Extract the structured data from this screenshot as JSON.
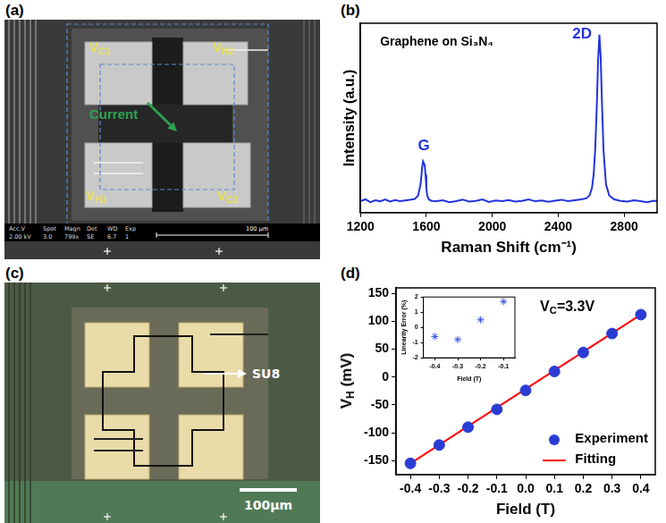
{
  "images": {
    "a": {
      "panel_label": "(a)",
      "terminals": [
        {
          "base": "V",
          "sub": "C1"
        },
        {
          "base": "V",
          "sub": "H2"
        },
        {
          "base": "V",
          "sub": "H1"
        },
        {
          "base": "V",
          "sub": "C2"
        }
      ],
      "arrow_label": "Current",
      "info_header": [
        "Acc.V",
        "Spot",
        "Magn",
        "Det",
        "WD",
        "Exp"
      ],
      "info_values": [
        "2.00 kV",
        "3.0",
        "799x",
        "SE",
        "6.7",
        "1"
      ],
      "scale_bar": "100 μm"
    },
    "c": {
      "panel_label": "(c)",
      "callout": "SU8",
      "scale_bar": "100μm"
    }
  },
  "chart_data": [
    {
      "type": "line",
      "panel_label": "(b)",
      "title": "Graphene on Si₃N₄",
      "x_label": "Raman Shift (cm⁻¹)",
      "y_label": "Intensity (a.u.)",
      "xlim": [
        1200,
        3000
      ],
      "xticks": [
        1200,
        1600,
        2000,
        2400,
        2800
      ],
      "ylim": [
        0,
        1
      ],
      "grid": false,
      "tick_labels": "x",
      "annotations": [
        {
          "text": "G",
          "x": 1585,
          "y": 0.31
        },
        {
          "text": "2D",
          "x": 2545,
          "y": 0.9
        }
      ],
      "series": [
        {
          "color": "#2233dd",
          "line_style": "solid",
          "x": [
            1200,
            1230,
            1260,
            1290,
            1320,
            1350,
            1380,
            1410,
            1440,
            1470,
            1500,
            1530,
            1550,
            1565,
            1575,
            1580,
            1585,
            1590,
            1595,
            1600,
            1605,
            1615,
            1630,
            1660,
            1700,
            1740,
            1780,
            1820,
            1860,
            1900,
            1940,
            1980,
            2020,
            2060,
            2100,
            2140,
            2180,
            2220,
            2260,
            2300,
            2340,
            2380,
            2420,
            2460,
            2500,
            2540,
            2570,
            2590,
            2605,
            2615,
            2625,
            2635,
            2642,
            2650,
            2658,
            2665,
            2675,
            2690,
            2710,
            2740,
            2780,
            2820,
            2860,
            2900,
            2940,
            2980,
            3000
          ],
          "values": [
            0.06,
            0.07,
            0.055,
            0.065,
            0.06,
            0.07,
            0.058,
            0.066,
            0.06,
            0.064,
            0.068,
            0.072,
            0.09,
            0.15,
            0.24,
            0.27,
            0.26,
            0.25,
            0.2,
            0.13,
            0.09,
            0.07,
            0.062,
            0.06,
            0.065,
            0.055,
            0.06,
            0.068,
            0.058,
            0.062,
            0.07,
            0.056,
            0.064,
            0.06,
            0.066,
            0.058,
            0.062,
            0.07,
            0.06,
            0.064,
            0.057,
            0.063,
            0.068,
            0.06,
            0.065,
            0.07,
            0.075,
            0.09,
            0.13,
            0.2,
            0.34,
            0.58,
            0.8,
            0.94,
            0.82,
            0.6,
            0.33,
            0.15,
            0.09,
            0.07,
            0.062,
            0.058,
            0.065,
            0.06,
            0.055,
            0.063,
            0.06
          ]
        }
      ]
    },
    {
      "type": "scatter",
      "panel_label": "(d)",
      "x_label": "Field (T)",
      "y_label": {
        "base": "V",
        "sub": "H",
        "suffix": " (mV)"
      },
      "annotation": {
        "base": "V",
        "sub": "C",
        "suffix": "=3.3V",
        "x": 0.05,
        "y": 140
      },
      "xlim": [
        -0.45,
        0.45
      ],
      "xticks": [
        -0.4,
        -0.3,
        -0.2,
        -0.1,
        {
          "value": 0,
          "label": "0.0"
        },
        0.1,
        0.2,
        0.3,
        0.4
      ],
      "ylim": [
        -175,
        160
      ],
      "yticks": [
        -150,
        -100,
        -50,
        0,
        50,
        100,
        150
      ],
      "grid": false,
      "legend": "lower right",
      "series": [
        {
          "name": "Experiment",
          "type": "scatter",
          "marker": "circle",
          "color": "#2a3cd4",
          "x": [
            -0.4,
            -0.3,
            -0.2,
            -0.1,
            0,
            0.1,
            0.2,
            0.3,
            0.4
          ],
          "values": [
            -155,
            -122,
            -90,
            -58,
            -24,
            10,
            44,
            78,
            112
          ]
        },
        {
          "name": "Fitting",
          "type": "line",
          "line_style": "solid",
          "color": "#ff0000",
          "x": [
            -0.4,
            0.4
          ],
          "values": [
            -155,
            112
          ]
        }
      ]
    },
    {
      "type": "scatter",
      "x_label": "Field (T)",
      "y_label": "Linearity Error (%)",
      "xlim": [
        -0.45,
        -0.05
      ],
      "xticks": [
        -0.4,
        -0.3,
        -0.2,
        -0.1
      ],
      "ylim": [
        -2,
        2
      ],
      "yticks": [
        -2,
        -1,
        0,
        1,
        2
      ],
      "grid": false,
      "series": [
        {
          "type": "scatter",
          "marker": "star",
          "color": "#3a4fe0",
          "x": [
            -0.4,
            -0.3,
            -0.2,
            -0.1
          ],
          "values": [
            -0.6,
            -0.8,
            0.5,
            1.7
          ]
        }
      ]
    }
  ]
}
